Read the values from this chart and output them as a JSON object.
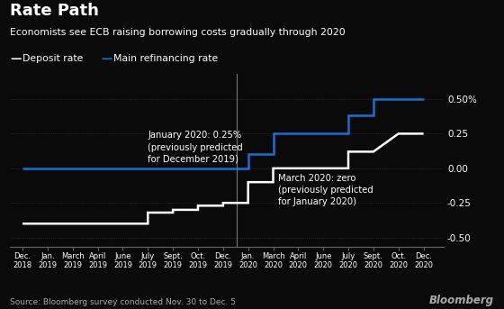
{
  "title": "Rate Path",
  "subtitle": "Economists see ECB raising borrowing costs gradually through 2020",
  "source": "Source: Bloomberg survey conducted Nov. 30 to Dec. 5",
  "background_color": "#0a0a0a",
  "text_color": "#ffffff",
  "grid_color": "#444444",
  "axis_color": "#666666",
  "annotation_color": "#cccccc",
  "legend_labels": [
    "Deposit rate",
    "Main refinancing rate"
  ],
  "deposit_color": "#ffffff",
  "main_color": "#1a6fd4",
  "annotation1_text": "January 2020: 0.25%\n(previously predicted\nfor December 2019)",
  "annotation2_text": "March 2020: zero\n(previously predicted\nfor January 2020)",
  "vline_x": 8.55,
  "tick_labels": [
    "Dec.\n2018",
    "Jan.\n2019",
    "March\n2019",
    "April\n2019",
    "June\n2019",
    "July\n2019",
    "Sept.\n2019",
    "Oct.\n2019",
    "Dec.\n2019",
    "Jan.\n2020",
    "March\n2020",
    "April\n2020",
    "June\n2020",
    "July\n2020",
    "Sept.\n2020",
    "Oct.\n2020",
    "Dec.\n2020"
  ],
  "tick_positions": [
    0,
    1,
    2,
    3,
    4,
    5,
    6,
    7,
    8,
    9,
    10,
    11,
    12,
    13,
    14,
    15,
    16
  ],
  "deposit_rate_x": [
    0,
    4,
    4,
    5,
    5,
    6,
    6,
    7,
    7,
    8,
    8,
    9,
    9,
    10,
    10,
    11,
    11,
    12,
    12,
    13,
    13,
    14,
    15,
    16
  ],
  "deposit_rate_y": [
    -0.4,
    -0.4,
    -0.4,
    -0.4,
    -0.32,
    -0.32,
    -0.3,
    -0.3,
    -0.27,
    -0.27,
    -0.25,
    -0.25,
    -0.1,
    -0.1,
    0.0,
    0.0,
    0.0,
    0.0,
    0.0,
    0.0,
    0.12,
    0.12,
    0.25,
    0.25
  ],
  "main_rate_x": [
    0,
    8,
    8,
    9,
    9,
    10,
    10,
    12,
    12,
    13,
    13,
    14,
    14,
    16
  ],
  "main_rate_y": [
    0.0,
    0.0,
    0.0,
    0.0,
    0.1,
    0.1,
    0.25,
    0.25,
    0.25,
    0.25,
    0.38,
    0.38,
    0.5,
    0.5
  ],
  "ylim": [
    -0.57,
    0.68
  ],
  "yticks": [
    -0.5,
    -0.25,
    0.0,
    0.25,
    0.5
  ],
  "ytick_labels": [
    "-0.50",
    "-0.25",
    "0.00",
    "0.25",
    "0.50%"
  ],
  "xlim": [
    -0.5,
    16.8
  ]
}
